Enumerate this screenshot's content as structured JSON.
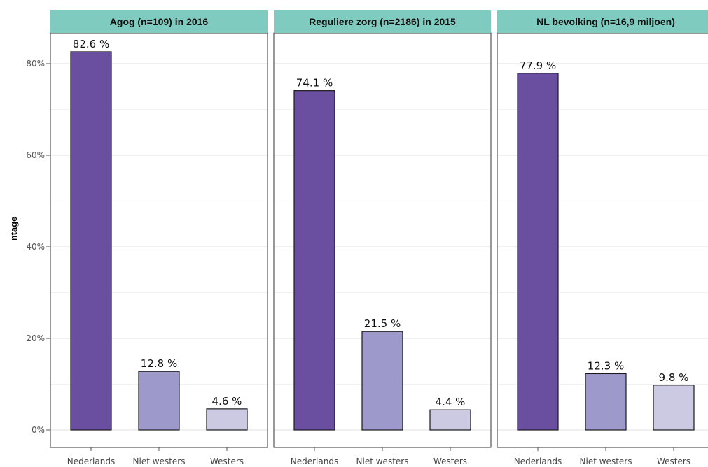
{
  "chart_data": {
    "type": "bar",
    "ylabel": "ntage",
    "ylim": [
      0,
      0.88
    ],
    "y_ticks": [
      0,
      0.2,
      0.4,
      0.6,
      0.8
    ],
    "y_tick_labels": [
      "0%",
      "20%",
      "40%",
      "60%",
      "80%"
    ],
    "grid": true,
    "categories": [
      "Nederlands",
      "Niet westers",
      "Westers"
    ],
    "colors": [
      "#6a4fa1",
      "#9d9acb",
      "#cccae2"
    ],
    "facet_strip_color": "#80cbbf",
    "panels": [
      {
        "title": "Agog (n=109) in 2016",
        "values": [
          82.6,
          12.8,
          4.6
        ],
        "labels": [
          "82.6 %",
          "12.8 %",
          "4.6 %"
        ]
      },
      {
        "title": "Reguliere zorg (n=2186) in 2015",
        "values": [
          74.1,
          21.5,
          4.4
        ],
        "labels": [
          "74.1 %",
          "21.5 %",
          "4.4 %"
        ]
      },
      {
        "title": "NL bevolking (n=16,9 miljoen)",
        "values": [
          77.9,
          12.3,
          9.8
        ],
        "labels": [
          "77.9 %",
          "12.3 %",
          "9.8 %"
        ]
      }
    ]
  }
}
